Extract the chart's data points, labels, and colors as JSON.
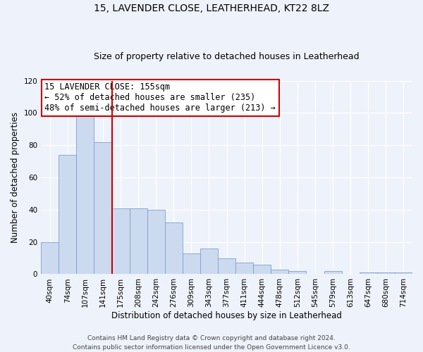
{
  "title": "15, LAVENDER CLOSE, LEATHERHEAD, KT22 8LZ",
  "subtitle": "Size of property relative to detached houses in Leatherhead",
  "xlabel": "Distribution of detached houses by size in Leatherhead",
  "ylabel": "Number of detached properties",
  "bar_labels": [
    "40sqm",
    "74sqm",
    "107sqm",
    "141sqm",
    "175sqm",
    "208sqm",
    "242sqm",
    "276sqm",
    "309sqm",
    "343sqm",
    "377sqm",
    "411sqm",
    "444sqm",
    "478sqm",
    "512sqm",
    "545sqm",
    "579sqm",
    "613sqm",
    "647sqm",
    "680sqm",
    "714sqm"
  ],
  "bar_values": [
    20,
    74,
    101,
    82,
    41,
    41,
    40,
    32,
    13,
    16,
    10,
    7,
    6,
    3,
    2,
    0,
    2,
    0,
    1,
    1,
    1
  ],
  "bar_color": "#ccdaf0",
  "bar_edge_color": "#7ba0cc",
  "vline_x_index": 3,
  "vline_color": "#cc0000",
  "ylim": [
    0,
    120
  ],
  "yticks": [
    0,
    20,
    40,
    60,
    80,
    100,
    120
  ],
  "annotation_title": "15 LAVENDER CLOSE: 155sqm",
  "annotation_line1": "← 52% of detached houses are smaller (235)",
  "annotation_line2": "48% of semi-detached houses are larger (213) →",
  "annotation_box_color": "#ffffff",
  "annotation_box_edge": "#cc0000",
  "footer_line1": "Contains HM Land Registry data © Crown copyright and database right 2024.",
  "footer_line2": "Contains public sector information licensed under the Open Government Licence v3.0.",
  "background_color": "#eef2fa",
  "grid_color": "#ffffff",
  "title_fontsize": 10,
  "subtitle_fontsize": 9,
  "axis_label_fontsize": 8.5,
  "tick_fontsize": 7.5,
  "annotation_fontsize": 8.5,
  "footer_fontsize": 6.5
}
